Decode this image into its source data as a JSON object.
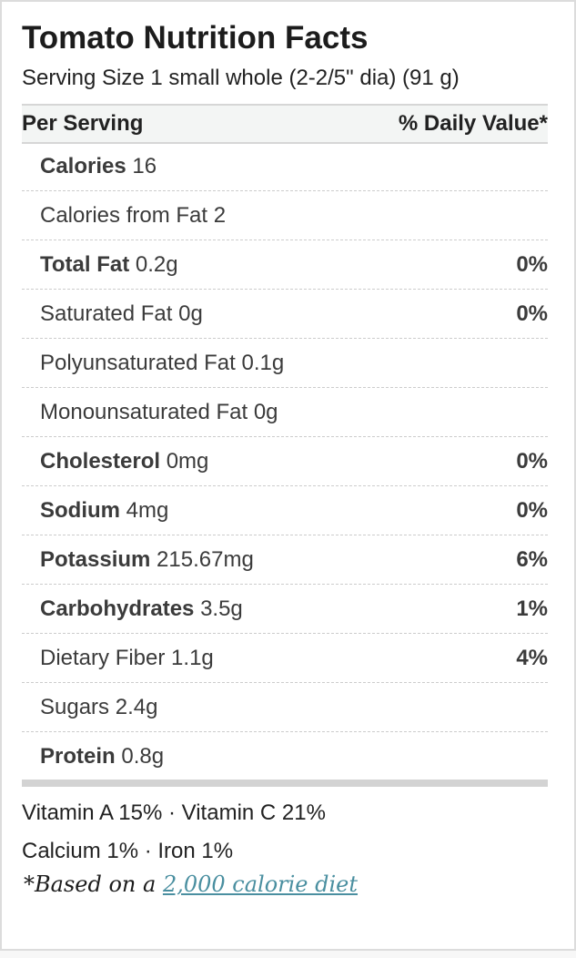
{
  "title": "Tomato Nutrition Facts",
  "serving_size": "Serving Size 1 small whole (2-2/5\" dia) (91 g)",
  "header": {
    "left": "Per Serving",
    "right": "% Daily Value*"
  },
  "rows": [
    {
      "name": "Calories",
      "amount": "16",
      "dv": "",
      "bold": true
    },
    {
      "name": "Calories from Fat",
      "amount": "2",
      "dv": "",
      "bold": false
    },
    {
      "name": "Total Fat",
      "amount": "0.2g",
      "dv": "0%",
      "bold": true
    },
    {
      "name": "Saturated Fat",
      "amount": "0g",
      "dv": "0%",
      "bold": false
    },
    {
      "name": "Polyunsaturated Fat",
      "amount": "0.1g",
      "dv": "",
      "bold": false
    },
    {
      "name": "Monounsaturated Fat",
      "amount": "0g",
      "dv": "",
      "bold": false
    },
    {
      "name": "Cholesterol",
      "amount": "0mg",
      "dv": "0%",
      "bold": true
    },
    {
      "name": "Sodium",
      "amount": "4mg",
      "dv": "0%",
      "bold": true
    },
    {
      "name": "Potassium",
      "amount": "215.67mg",
      "dv": "6%",
      "bold": true
    },
    {
      "name": "Carbohydrates",
      "amount": "3.5g",
      "dv": "1%",
      "bold": true
    },
    {
      "name": "Dietary Fiber",
      "amount": "1.1g",
      "dv": "4%",
      "bold": false
    },
    {
      "name": "Sugars",
      "amount": "2.4g",
      "dv": "",
      "bold": false
    },
    {
      "name": "Protein",
      "amount": "0.8g",
      "dv": "",
      "bold": true
    }
  ],
  "vitamins_line1": "Vitamin A 15% · Vitamin C 21%",
  "vitamins_line2": "Calcium 1% · Iron 1%",
  "footnote": {
    "prefix": "*Based on a ",
    "link": "2,000 calorie diet",
    "link_color": "#4a8fa0"
  }
}
